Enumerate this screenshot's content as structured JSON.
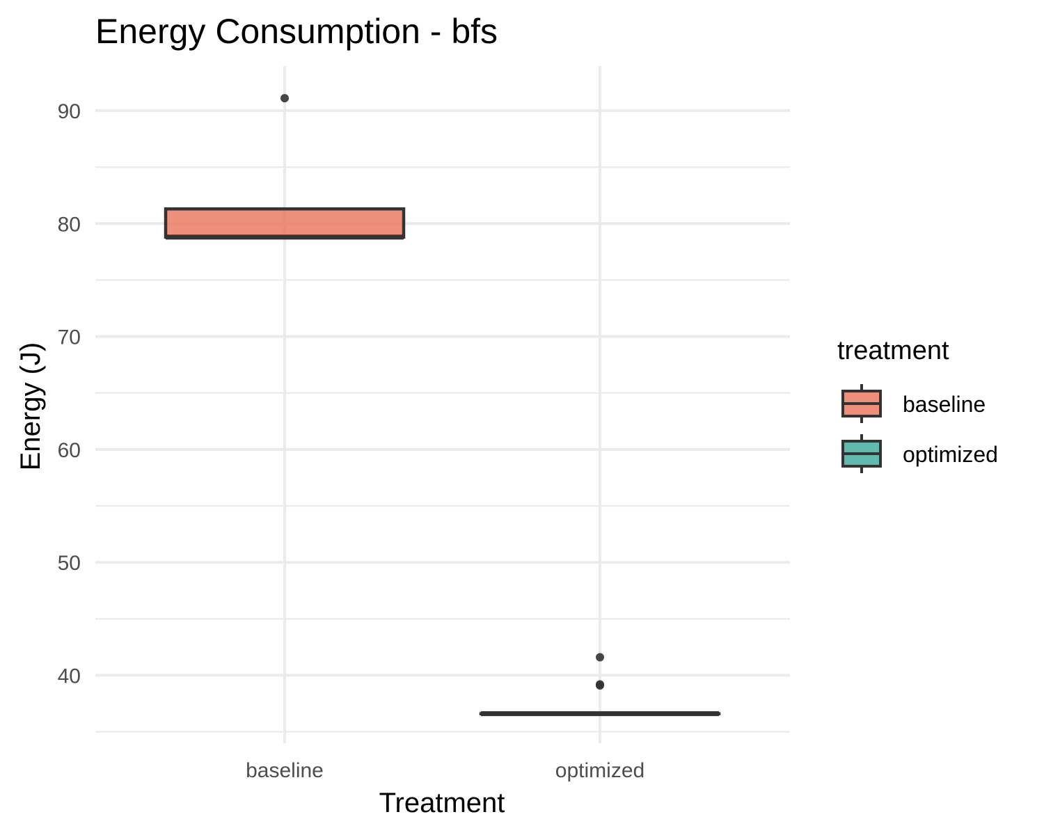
{
  "chart_data": {
    "type": "boxplot",
    "title": "Energy Consumption - bfs",
    "xlabel": "Treatment",
    "ylabel": "Energy (J)",
    "ylim": [
      34.5,
      94
    ],
    "yticks": [
      40,
      50,
      60,
      70,
      80,
      90
    ],
    "categories": [
      "baseline",
      "optimized"
    ],
    "grid": true,
    "legend": {
      "title": "treatment",
      "position": "right",
      "entries": [
        "baseline",
        "optimized"
      ]
    },
    "series": [
      {
        "name": "baseline",
        "color": "#E8735A",
        "box": {
          "lower_whisker": 78.8,
          "q1": 78.8,
          "median": 78.8,
          "q3": 81.3,
          "upper_whisker": 81.3
        },
        "outliers": [
          91.1
        ]
      },
      {
        "name": "optimized",
        "color": "#3AA99A",
        "box": {
          "lower_whisker": 36.6,
          "q1": 36.6,
          "median": 36.6,
          "q3": 36.6,
          "upper_whisker": 36.6
        },
        "outliers": [
          41.6,
          39.1,
          39.2
        ]
      }
    ]
  }
}
